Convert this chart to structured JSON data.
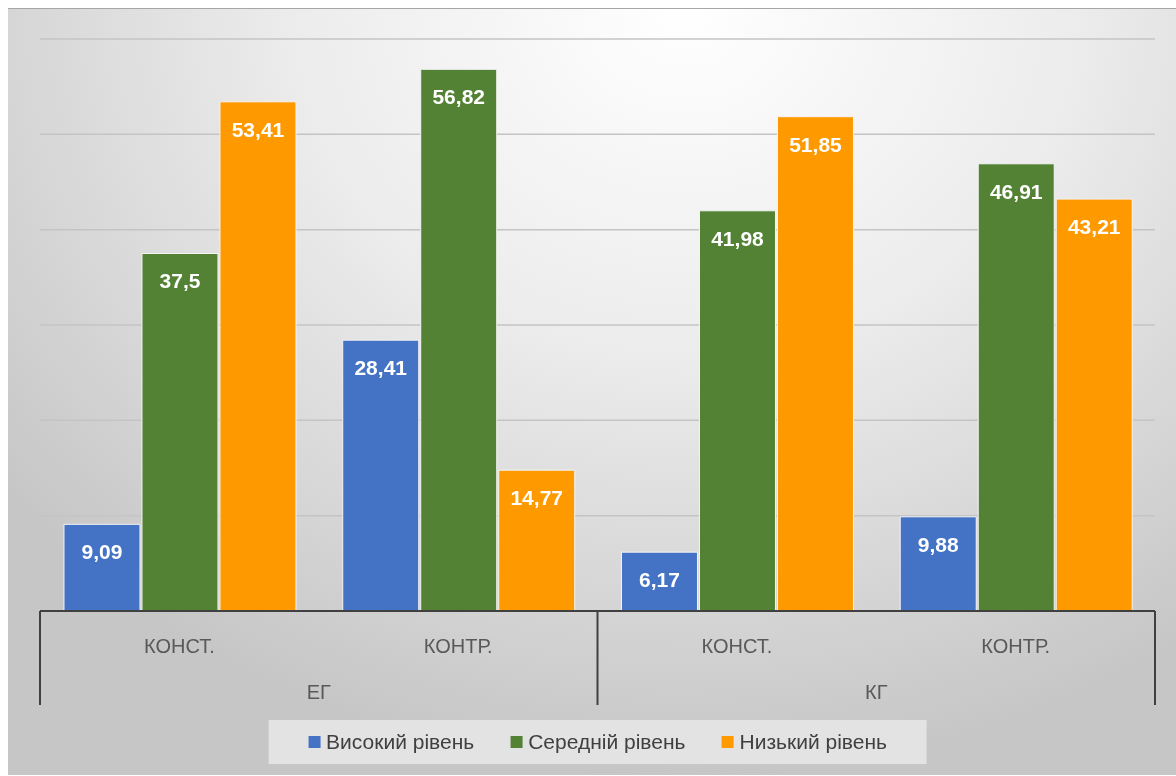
{
  "chart_data": {
    "type": "bar",
    "categories": [
      "КОНСТ.",
      "КОНТР.",
      "КОНСТ.",
      "КОНТР."
    ],
    "annotations": [
      "ЕГ",
      "КГ"
    ],
    "series": [
      {
        "name": "Високий рівень",
        "color": "#4472c4",
        "values": [
          9.09,
          28.41,
          6.17,
          9.88
        ],
        "value_labels": [
          "9,09",
          "28,41",
          "6,17",
          "9,88"
        ]
      },
      {
        "name": "Середній рівень",
        "color": "#548235",
        "values": [
          37.5,
          56.82,
          41.98,
          46.91
        ],
        "value_labels": [
          "37,5",
          "56,82",
          "41,98",
          "46,91"
        ]
      },
      {
        "name": "Низький рівень",
        "color": "#ff9900",
        "values": [
          53.41,
          14.77,
          51.85,
          43.21
        ],
        "value_labels": [
          "53,41",
          "14,77",
          "51,85",
          "43,21"
        ]
      }
    ],
    "ylim": [
      0,
      60
    ],
    "yticks": [
      {
        "value": 0,
        "label": null
      },
      {
        "value": 10,
        "label": null
      },
      {
        "value": 20,
        "label": null
      },
      {
        "value": 30,
        "label": null
      },
      {
        "value": 40,
        "label": null
      },
      {
        "value": 50,
        "label": null
      },
      {
        "value": 60,
        "label": null
      }
    ],
    "grid": "y",
    "tick_labels": "x",
    "legend": "bottom"
  }
}
